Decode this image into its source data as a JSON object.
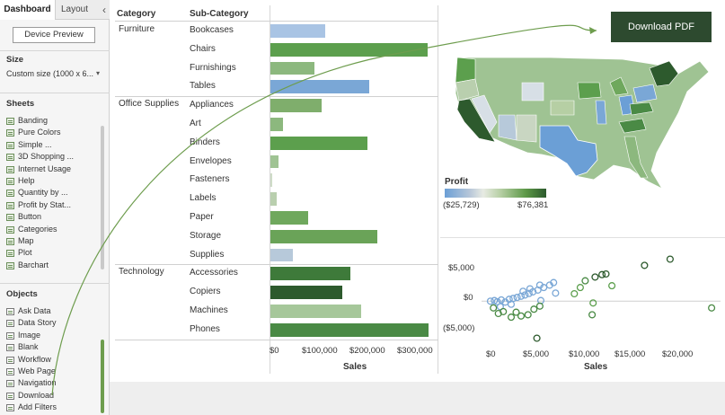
{
  "left_panel": {
    "tabs": [
      "Dashboard",
      "Layout"
    ],
    "collapse_icon": "chevron-left-icon",
    "device_preview": "Device Preview",
    "size_title": "Size",
    "size_value": "Custom size (1000 x 6...",
    "sheets_title": "Sheets",
    "sheets": [
      "Banding",
      "Pure Colors",
      "Simple ...",
      "3D Shopping ...",
      "Internet Usage",
      "Help",
      "Quantity by ...",
      "Profit by Stat...",
      "Button",
      "Categories",
      "Map",
      "Plot",
      "Barchart"
    ],
    "objects_title": "Objects",
    "objects": [
      "Ask Data",
      "Data Story",
      "Image",
      "Blank",
      "Workflow",
      "Web Page",
      "Navigation",
      "Download",
      "Add Filters"
    ]
  },
  "bar_chart": {
    "header_category": "Category",
    "header_subcategory": "Sub-Category",
    "x_title": "Sales",
    "ticks": [
      "$0",
      "$100,000",
      "$200,000",
      "$300,000"
    ]
  },
  "chart_data": [
    {
      "type": "bar",
      "orientation": "horizontal",
      "xlabel": "Sales",
      "xlim": [
        0,
        330000
      ],
      "groups": [
        {
          "category": "Furniture",
          "subcategories": [
            "Bookcases",
            "Chairs",
            "Furnishings",
            "Tables"
          ],
          "values": [
            114880,
            328449,
            91705,
            206966
          ],
          "colors": [
            "#a9c4e4",
            "#5c9f4d",
            "#8cb87e",
            "#7aa7d6"
          ]
        },
        {
          "category": "Office Supplies",
          "subcategories": [
            "Appliances",
            "Art",
            "Binders",
            "Envelopes",
            "Fasteners",
            "Labels",
            "Paper",
            "Storage",
            "Supplies"
          ],
          "values": [
            107532,
            27119,
            203413,
            16476,
            3024,
            12486,
            78479,
            223844,
            46674
          ],
          "colors": [
            "#7fae6c",
            "#8cb87e",
            "#5c9f4d",
            "#9fc393",
            "#cfdcc8",
            "#b9cfae",
            "#6fa85d",
            "#6aa358",
            "#b7c9da"
          ]
        },
        {
          "category": "Technology",
          "subcategories": [
            "Accessories",
            "Copiers",
            "Machines",
            "Phones"
          ],
          "values": [
            167380,
            149528,
            189239,
            330007
          ],
          "colors": [
            "#3e7a3a",
            "#2d5a2d",
            "#a6c79a",
            "#4a8a45"
          ]
        }
      ]
    },
    {
      "type": "scatter",
      "xlabel": "Sales",
      "ylabel": "",
      "x_ticks": [
        "$0",
        "$5,000",
        "$10,000",
        "$15,000",
        "$20,000"
      ],
      "y_ticks": [
        "$5,000",
        "$0",
        "($5,000)"
      ],
      "xlim": [
        -700,
        23500
      ],
      "ylim": [
        -6800,
        9200
      ],
      "points": [
        {
          "x": 200,
          "y": 0,
          "c": "#7aa7d6"
        },
        {
          "x": 600,
          "y": 100,
          "c": "#7aa7d6"
        },
        {
          "x": 900,
          "y": -100,
          "c": "#7aa7d6"
        },
        {
          "x": 1300,
          "y": 200,
          "c": "#7aa7d6"
        },
        {
          "x": 1700,
          "y": -150,
          "c": "#7aa7d6"
        },
        {
          "x": 2100,
          "y": 300,
          "c": "#7aa7d6"
        },
        {
          "x": 2500,
          "y": 450,
          "c": "#7aa7d6"
        },
        {
          "x": 2900,
          "y": 600,
          "c": "#7aa7d6"
        },
        {
          "x": 3300,
          "y": 800,
          "c": "#7aa7d6"
        },
        {
          "x": 3700,
          "y": 1000,
          "c": "#7aa7d6"
        },
        {
          "x": 4100,
          "y": 1250,
          "c": "#7aa7d6"
        },
        {
          "x": 4500,
          "y": 1500,
          "c": "#7aa7d6"
        },
        {
          "x": 5000,
          "y": 1800,
          "c": "#7aa7d6"
        },
        {
          "x": 5600,
          "y": 2200,
          "c": "#7aa7d6"
        },
        {
          "x": 6200,
          "y": 2600,
          "c": "#7aa7d6"
        },
        {
          "x": 6600,
          "y": 3000,
          "c": "#7aa7d6"
        },
        {
          "x": 3500,
          "y": 1600,
          "c": "#7aa7d6"
        },
        {
          "x": 4200,
          "y": 2000,
          "c": "#7aa7d6"
        },
        {
          "x": 5200,
          "y": 2600,
          "c": "#7aa7d6"
        },
        {
          "x": 6800,
          "y": 1300,
          "c": "#7aa7d6"
        },
        {
          "x": 5300,
          "y": 100,
          "c": "#7aa7d6"
        },
        {
          "x": 1200,
          "y": -900,
          "c": "#7aa7d6"
        },
        {
          "x": 2300,
          "y": -500,
          "c": "#7aa7d6"
        },
        {
          "x": 500,
          "y": -1100,
          "c": "#4a8a45"
        },
        {
          "x": 1500,
          "y": -1700,
          "c": "#4a8a45"
        },
        {
          "x": 2300,
          "y": -2600,
          "c": "#4a8a45"
        },
        {
          "x": 3300,
          "y": -2400,
          "c": "#4a8a45"
        },
        {
          "x": 4600,
          "y": -1300,
          "c": "#4a8a45"
        },
        {
          "x": 1000,
          "y": -2000,
          "c": "#4a8a45"
        },
        {
          "x": 2800,
          "y": -1800,
          "c": "#4a8a45"
        },
        {
          "x": 4000,
          "y": -2200,
          "c": "#4a8a45"
        },
        {
          "x": 5200,
          "y": -800,
          "c": "#4a8a45"
        },
        {
          "x": 8700,
          "y": 1200,
          "c": "#5c9f4d"
        },
        {
          "x": 9300,
          "y": 2200,
          "c": "#5c9f4d"
        },
        {
          "x": 9800,
          "y": 3300,
          "c": "#4a8a45"
        },
        {
          "x": 10800,
          "y": 3900,
          "c": "#2d5a2d"
        },
        {
          "x": 11500,
          "y": 4300,
          "c": "#2d5a2d"
        },
        {
          "x": 11900,
          "y": 4400,
          "c": "#2d5a2d"
        },
        {
          "x": 12500,
          "y": 2500,
          "c": "#5c9f4d"
        },
        {
          "x": 10600,
          "y": -300,
          "c": "#5c9f4d"
        },
        {
          "x": 10500,
          "y": -2200,
          "c": "#4a8a45"
        },
        {
          "x": 15800,
          "y": 5800,
          "c": "#2d5a2d"
        },
        {
          "x": 18400,
          "y": 6800,
          "c": "#2d5a2d"
        },
        {
          "x": 22600,
          "y": -1100,
          "c": "#4a8a45"
        },
        {
          "x": 4900,
          "y": -6000,
          "c": "#2d5a2d"
        }
      ]
    }
  ],
  "download_button": "Download PDF",
  "map": {
    "legend_title": "Profit",
    "legend_min": "($25,729)",
    "legend_max": "$76,381"
  },
  "colors": {
    "accent_dark": "#2d4a2f",
    "profit_negative": "#6b9fd6",
    "profit_positive": "#2d5a2d"
  }
}
